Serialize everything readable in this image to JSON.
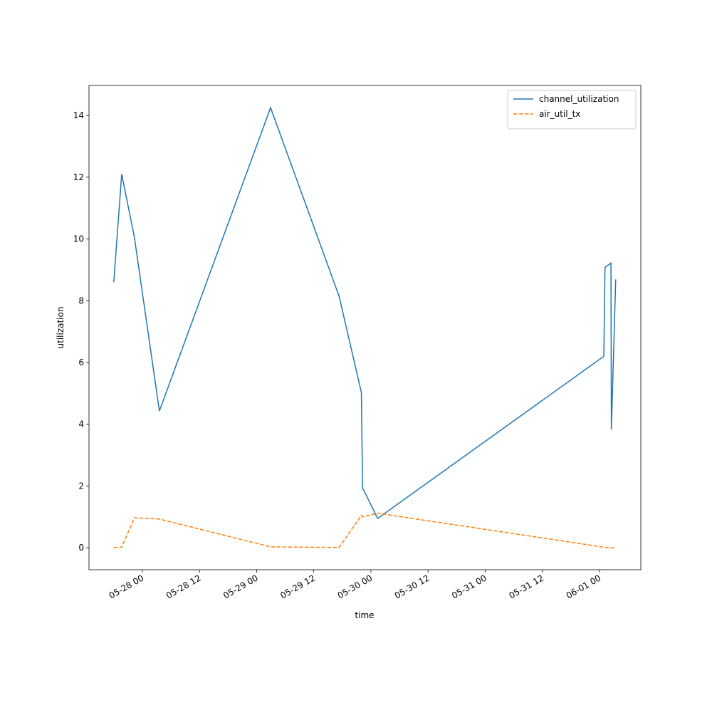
{
  "chart_data": {
    "type": "line",
    "x_label": "time",
    "y_label": "utilization",
    "x": [
      "05-27 18:00",
      "05-27 19:40",
      "05-27 22:20",
      "05-28 03:35",
      "05-29 02:56",
      "05-29 17:20",
      "05-29 22:00",
      "05-29 22:15",
      "05-30 01:25",
      "06-01 00:55",
      "06-01 01:10",
      "06-01 02:25",
      "06-01 02:30",
      "06-01 03:25"
    ],
    "series": [
      {
        "name": "channel_utilization",
        "color": "#1f77b4",
        "dash": "solid",
        "values": [
          8.6,
          12.1,
          10.05,
          4.43,
          14.25,
          8.14,
          5.03,
          1.94,
          0.95,
          6.2,
          9.08,
          9.22,
          3.83,
          8.69
        ]
      },
      {
        "name": "air_util_tx",
        "color": "#ff7f0e",
        "dash": "dashed",
        "values": [
          0.01,
          0.02,
          0.97,
          0.93,
          0.03,
          0.01,
          1.05,
          1.0,
          1.12,
          0.02,
          0.01,
          0.0,
          0.0,
          0.01
        ]
      }
    ],
    "xlim": [
      "05-27 12:48",
      "06-01 08:41"
    ],
    "xticks": [
      "05-28 00",
      "05-28 12",
      "05-29 00",
      "05-29 12",
      "05-30 00",
      "05-30 12",
      "05-31 00",
      "05-31 12",
      "06-01 00"
    ],
    "ylim": [
      -0.71,
      14.97
    ],
    "yticks": [
      0,
      2,
      4,
      6,
      8,
      10,
      12,
      14
    ],
    "legend": "upper right",
    "grid": false
  }
}
